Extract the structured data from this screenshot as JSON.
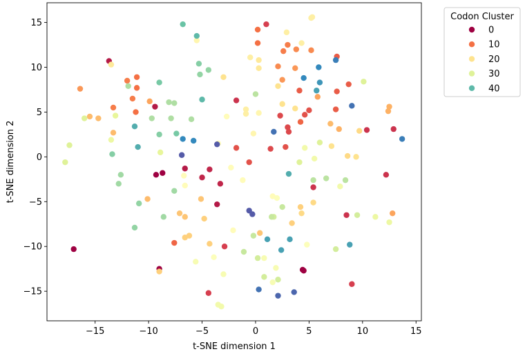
{
  "chart_data": {
    "type": "scatter",
    "xlabel": "t-SNE dimension 1",
    "ylabel": "t-SNE dimension 2",
    "xlim": [
      -19.5,
      15.5
    ],
    "ylim": [
      -18.3,
      17.2
    ],
    "xticks": [
      -15,
      -10,
      -5,
      0,
      5,
      10,
      15
    ],
    "yticks": [
      -15,
      -10,
      -5,
      0,
      5,
      10,
      15
    ],
    "xtick_labels": [
      "−15",
      "−10",
      "−5",
      "0",
      "5",
      "10",
      "15"
    ],
    "ytick_labels": [
      "−15",
      "−10",
      "−5",
      "0",
      "5",
      "10",
      "15"
    ],
    "grid": false,
    "colormap": "Spectral",
    "color_range": [
      0,
      49
    ],
    "legend": {
      "title": "Codon Cluster",
      "placement": "outside-top-right",
      "entries": [
        {
          "label": "0",
          "value": 0
        },
        {
          "label": "10",
          "value": 10
        },
        {
          "label": "20",
          "value": 20
        },
        {
          "label": "30",
          "value": 30
        },
        {
          "label": "40",
          "value": 40
        }
      ]
    },
    "points": [
      {
        "x": -17.0,
        "y": -10.3,
        "c": 0
      },
      {
        "x": -8.7,
        "y": -1.8,
        "c": 0
      },
      {
        "x": -9.3,
        "y": -2.0,
        "c": 0
      },
      {
        "x": -9.0,
        "y": -12.5,
        "c": 0
      },
      {
        "x": 4.4,
        "y": -12.6,
        "c": 0
      },
      {
        "x": 4.5,
        "y": -12.7,
        "c": 0
      },
      {
        "x": -13.7,
        "y": 10.7,
        "c": 2
      },
      {
        "x": -9.4,
        "y": 5.6,
        "c": 2
      },
      {
        "x": -6.6,
        "y": -1.3,
        "c": 2
      },
      {
        "x": -4.3,
        "y": -1.4,
        "c": 3
      },
      {
        "x": -3.3,
        "y": -3.0,
        "c": 3
      },
      {
        "x": -3.6,
        "y": -5.3,
        "c": 2
      },
      {
        "x": -5.0,
        "y": -2.3,
        "c": 3
      },
      {
        "x": -1.8,
        "y": 6.3,
        "c": 4
      },
      {
        "x": 5.4,
        "y": -3.4,
        "c": 4
      },
      {
        "x": 12.2,
        "y": -2.0,
        "c": 4
      },
      {
        "x": 12.9,
        "y": 3.1,
        "c": 4
      },
      {
        "x": 10.4,
        "y": 3.0,
        "c": 4
      },
      {
        "x": 8.5,
        "y": -6.5,
        "c": 4
      },
      {
        "x": 9.0,
        "y": -14.2,
        "c": 5
      },
      {
        "x": -4.4,
        "y": -15.2,
        "c": 5
      },
      {
        "x": -2.9,
        "y": -10.0,
        "c": 5
      },
      {
        "x": 1.0,
        "y": 14.8,
        "c": 5
      },
      {
        "x": 1.4,
        "y": 0.9,
        "c": 6
      },
      {
        "x": 3.0,
        "y": 3.3,
        "c": 6
      },
      {
        "x": 3.1,
        "y": 2.8,
        "c": 6
      },
      {
        "x": 2.3,
        "y": 4.6,
        "c": 6
      },
      {
        "x": 2.8,
        "y": 1.1,
        "c": 7
      },
      {
        "x": -1.8,
        "y": 1.0,
        "c": 7
      },
      {
        "x": -0.6,
        "y": -0.6,
        "c": 7
      },
      {
        "x": 4.6,
        "y": 4.7,
        "c": 7
      },
      {
        "x": 5.0,
        "y": 5.2,
        "c": 7
      },
      {
        "x": 4.1,
        "y": 7.4,
        "c": 8
      },
      {
        "x": 7.6,
        "y": 11.2,
        "c": 8
      },
      {
        "x": 7.6,
        "y": 7.3,
        "c": 8
      },
      {
        "x": 7.5,
        "y": 5.3,
        "c": 8
      },
      {
        "x": 8.7,
        "y": 8.1,
        "c": 8
      },
      {
        "x": 4.2,
        "y": 3.9,
        "c": 9
      },
      {
        "x": -7.6,
        "y": -9.6,
        "c": 9
      },
      {
        "x": -11.2,
        "y": 5.0,
        "c": 10
      },
      {
        "x": -11.1,
        "y": 7.7,
        "c": 10
      },
      {
        "x": -11.1,
        "y": 8.9,
        "c": 10
      },
      {
        "x": -11.5,
        "y": 6.5,
        "c": 11
      },
      {
        "x": -12.0,
        "y": 8.5,
        "c": 11
      },
      {
        "x": -13.3,
        "y": 5.5,
        "c": 11
      },
      {
        "x": 0.2,
        "y": 14.2,
        "c": 10
      },
      {
        "x": 0.2,
        "y": 12.7,
        "c": 10
      },
      {
        "x": 2.6,
        "y": 11.8,
        "c": 11
      },
      {
        "x": 3.0,
        "y": 12.5,
        "c": 11
      },
      {
        "x": 3.8,
        "y": 12.0,
        "c": 12
      },
      {
        "x": 5.2,
        "y": 11.9,
        "c": 12
      },
      {
        "x": 2.1,
        "y": 10.1,
        "c": 12
      },
      {
        "x": 2.5,
        "y": 8.6,
        "c": 13
      },
      {
        "x": 3.7,
        "y": 9.9,
        "c": 13
      },
      {
        "x": 5.8,
        "y": 6.7,
        "c": 14
      },
      {
        "x": -16.4,
        "y": 7.6,
        "c": 13
      },
      {
        "x": -9.9,
        "y": 6.2,
        "c": 14
      },
      {
        "x": 12.8,
        "y": -6.3,
        "c": 14
      },
      {
        "x": 12.4,
        "y": 5.1,
        "c": 15
      },
      {
        "x": 12.5,
        "y": 5.6,
        "c": 15
      },
      {
        "x": 7.8,
        "y": 3.1,
        "c": 15
      },
      {
        "x": 7.0,
        "y": 3.7,
        "c": 16
      },
      {
        "x": -14.7,
        "y": 4.3,
        "c": 16
      },
      {
        "x": -15.5,
        "y": 4.5,
        "c": 16
      },
      {
        "x": -13.3,
        "y": 2.7,
        "c": 16
      },
      {
        "x": -10.1,
        "y": -4.7,
        "c": 16
      },
      {
        "x": -7.1,
        "y": -6.3,
        "c": 17
      },
      {
        "x": -6.6,
        "y": -6.7,
        "c": 17
      },
      {
        "x": -5.1,
        "y": -4.7,
        "c": 17
      },
      {
        "x": -4.8,
        "y": -6.9,
        "c": 18
      },
      {
        "x": -6.6,
        "y": -9.0,
        "c": 18
      },
      {
        "x": -6.2,
        "y": -8.8,
        "c": 18
      },
      {
        "x": -4.3,
        "y": -9.7,
        "c": 18
      },
      {
        "x": -9.0,
        "y": -12.8,
        "c": 18
      },
      {
        "x": 0.4,
        "y": -8.5,
        "c": 17
      },
      {
        "x": 3.4,
        "y": -7.4,
        "c": 18
      },
      {
        "x": 4.2,
        "y": -5.6,
        "c": 18
      },
      {
        "x": 4.3,
        "y": -6.3,
        "c": 19
      },
      {
        "x": 5.4,
        "y": -5.1,
        "c": 19
      },
      {
        "x": 9.7,
        "y": 2.9,
        "c": 19
      },
      {
        "x": 8.6,
        "y": 0.1,
        "c": 19
      },
      {
        "x": 9.4,
        "y": -0.0,
        "c": 20
      },
      {
        "x": 7.1,
        "y": 1.2,
        "c": 20
      },
      {
        "x": 2.5,
        "y": 5.9,
        "c": 20
      },
      {
        "x": 3.7,
        "y": 5.4,
        "c": 20
      },
      {
        "x": 2.1,
        "y": 7.9,
        "c": 20
      },
      {
        "x": -3.0,
        "y": 8.9,
        "c": 20
      },
      {
        "x": 0.3,
        "y": 10.8,
        "c": 21
      },
      {
        "x": 0.3,
        "y": 9.9,
        "c": 21
      },
      {
        "x": -0.5,
        "y": 11.1,
        "c": 22
      },
      {
        "x": 2.9,
        "y": 13.9,
        "c": 22
      },
      {
        "x": 4.3,
        "y": 12.7,
        "c": 22
      },
      {
        "x": 5.2,
        "y": 15.5,
        "c": 22
      },
      {
        "x": 5.3,
        "y": 15.6,
        "c": 22
      },
      {
        "x": -5.5,
        "y": 13.0,
        "c": 23
      },
      {
        "x": -13.5,
        "y": 10.3,
        "c": 21
      },
      {
        "x": -0.9,
        "y": 5.3,
        "c": 22
      },
      {
        "x": -0.9,
        "y": 4.8,
        "c": 22
      },
      {
        "x": 0.3,
        "y": 4.9,
        "c": 23
      },
      {
        "x": -0.2,
        "y": 2.6,
        "c": 23
      },
      {
        "x": -2.7,
        "y": 4.5,
        "c": 24
      },
      {
        "x": -3.5,
        "y": 1.5,
        "c": 24
      },
      {
        "x": -2.3,
        "y": -1.2,
        "c": 24
      },
      {
        "x": -1.2,
        "y": -2.6,
        "c": 24
      },
      {
        "x": -6.6,
        "y": -3.2,
        "c": 24
      },
      {
        "x": -6.7,
        "y": -2.1,
        "c": 24
      },
      {
        "x": -2.1,
        "y": -8.2,
        "c": 24
      },
      {
        "x": 1.6,
        "y": -4.4,
        "c": 24
      },
      {
        "x": 2.0,
        "y": -4.6,
        "c": 25
      },
      {
        "x": 4.8,
        "y": -9.8,
        "c": 25
      },
      {
        "x": -3.9,
        "y": -11.2,
        "c": 25
      },
      {
        "x": -5.6,
        "y": -11.7,
        "c": 26
      },
      {
        "x": -3.0,
        "y": -13.1,
        "c": 26
      },
      {
        "x": 0.8,
        "y": -11.3,
        "c": 26
      },
      {
        "x": 1.9,
        "y": -12.4,
        "c": 26
      },
      {
        "x": 1.6,
        "y": -14.0,
        "c": 26
      },
      {
        "x": -3.5,
        "y": -16.5,
        "c": 27
      },
      {
        "x": -3.2,
        "y": -16.7,
        "c": 27
      },
      {
        "x": 7.9,
        "y": -3.3,
        "c": 27
      },
      {
        "x": 4.6,
        "y": 1.0,
        "c": 27
      },
      {
        "x": 5.5,
        "y": -0.2,
        "c": 27
      },
      {
        "x": 12.5,
        "y": -7.3,
        "c": 28
      },
      {
        "x": 11.2,
        "y": -6.7,
        "c": 28
      },
      {
        "x": -13.5,
        "y": 1.9,
        "c": 28
      },
      {
        "x": -13.1,
        "y": 4.6,
        "c": 29
      },
      {
        "x": -8.9,
        "y": 0.5,
        "c": 29
      },
      {
        "x": -17.8,
        "y": -0.6,
        "c": 30
      },
      {
        "x": -17.4,
        "y": 1.3,
        "c": 30
      },
      {
        "x": -16.0,
        "y": 4.3,
        "c": 30
      },
      {
        "x": 10.1,
        "y": 8.4,
        "c": 30
      },
      {
        "x": 6.0,
        "y": 1.6,
        "c": 30
      },
      {
        "x": 4.1,
        "y": -0.6,
        "c": 30
      },
      {
        "x": 7.5,
        "y": -10.3,
        "c": 31
      },
      {
        "x": 9.5,
        "y": -6.5,
        "c": 31
      },
      {
        "x": 1.7,
        "y": -6.7,
        "c": 31
      },
      {
        "x": 2.1,
        "y": -13.7,
        "c": 31
      },
      {
        "x": 0.8,
        "y": -13.4,
        "c": 31
      },
      {
        "x": 0.2,
        "y": -11.3,
        "c": 31
      },
      {
        "x": -0.2,
        "y": -8.8,
        "c": 32
      },
      {
        "x": -1.1,
        "y": -10.6,
        "c": 32
      },
      {
        "x": 2.5,
        "y": -5.6,
        "c": 32
      },
      {
        "x": 1.5,
        "y": -6.7,
        "c": 32
      },
      {
        "x": 6.6,
        "y": -2.4,
        "c": 33
      },
      {
        "x": 5.4,
        "y": -2.6,
        "c": 33
      },
      {
        "x": 8.4,
        "y": -2.6,
        "c": 33
      },
      {
        "x": 0.0,
        "y": 7.0,
        "c": 33
      },
      {
        "x": -8.1,
        "y": 6.1,
        "c": 34
      },
      {
        "x": -7.6,
        "y": 6.0,
        "c": 34
      },
      {
        "x": -9.7,
        "y": 4.3,
        "c": 34
      },
      {
        "x": -7.9,
        "y": 4.3,
        "c": 34
      },
      {
        "x": -6.0,
        "y": 4.2,
        "c": 34
      },
      {
        "x": -11.9,
        "y": 7.9,
        "c": 34
      },
      {
        "x": -8.6,
        "y": -6.7,
        "c": 35
      },
      {
        "x": -7.6,
        "y": -3.8,
        "c": 35
      },
      {
        "x": -12.6,
        "y": -2.0,
        "c": 35
      },
      {
        "x": -12.8,
        "y": -3.0,
        "c": 35
      },
      {
        "x": -11.3,
        "y": -7.9,
        "c": 36
      },
      {
        "x": -10.9,
        "y": -5.2,
        "c": 36
      },
      {
        "x": -4.4,
        "y": 9.7,
        "c": 36
      },
      {
        "x": -5.2,
        "y": 9.2,
        "c": 36
      },
      {
        "x": -5.3,
        "y": 10.4,
        "c": 37
      },
      {
        "x": -13.4,
        "y": 0.3,
        "c": 37
      },
      {
        "x": -9.0,
        "y": 2.5,
        "c": 37
      },
      {
        "x": -9.0,
        "y": 8.3,
        "c": 38
      },
      {
        "x": -7.4,
        "y": 2.6,
        "c": 38
      },
      {
        "x": -6.8,
        "y": 14.8,
        "c": 39
      },
      {
        "x": -5.5,
        "y": 13.5,
        "c": 40
      },
      {
        "x": -5.0,
        "y": 6.4,
        "c": 40
      },
      {
        "x": -11.3,
        "y": 3.4,
        "c": 41
      },
      {
        "x": -11.0,
        "y": 1.1,
        "c": 41
      },
      {
        "x": 3.1,
        "y": -1.9,
        "c": 41
      },
      {
        "x": 3.2,
        "y": -9.2,
        "c": 42
      },
      {
        "x": 2.4,
        "y": -10.4,
        "c": 42
      },
      {
        "x": 1.1,
        "y": -9.2,
        "c": 42
      },
      {
        "x": 8.8,
        "y": -9.8,
        "c": 42
      },
      {
        "x": 5.7,
        "y": 7.4,
        "c": 42
      },
      {
        "x": 6.0,
        "y": 8.3,
        "c": 43
      },
      {
        "x": 5.9,
        "y": 10.0,
        "c": 44
      },
      {
        "x": 4.5,
        "y": 8.8,
        "c": 44
      },
      {
        "x": -5.8,
        "y": 1.8,
        "c": 44
      },
      {
        "x": -6.8,
        "y": 2.0,
        "c": 44
      },
      {
        "x": 7.5,
        "y": 10.8,
        "c": 45
      },
      {
        "x": 13.7,
        "y": 2.0,
        "c": 45
      },
      {
        "x": 9.0,
        "y": 5.7,
        "c": 46
      },
      {
        "x": 1.7,
        "y": 2.8,
        "c": 46
      },
      {
        "x": 0.3,
        "y": -14.8,
        "c": 46
      },
      {
        "x": 2.1,
        "y": -15.5,
        "c": 47
      },
      {
        "x": 3.6,
        "y": -15.1,
        "c": 47
      },
      {
        "x": -0.6,
        "y": -6.0,
        "c": 48
      },
      {
        "x": -0.3,
        "y": -6.4,
        "c": 48
      },
      {
        "x": -6.9,
        "y": 0.2,
        "c": 48
      },
      {
        "x": -3.6,
        "y": 1.4,
        "c": 48
      }
    ]
  }
}
